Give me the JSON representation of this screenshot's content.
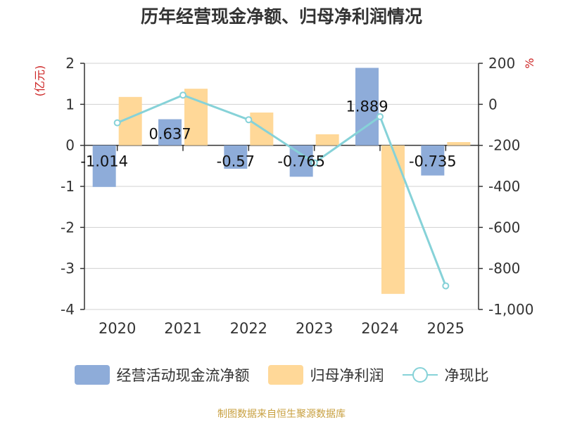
{
  "chart_data": {
    "type": "bar",
    "title": "历年经营现金净额、归母净利润情况",
    "categories": [
      "2020",
      "2021",
      "2022",
      "2023",
      "2024",
      "2025"
    ],
    "series": [
      {
        "name": "经营活动现金流净额",
        "kind": "bar",
        "axis": "left",
        "color": "#8eacd9",
        "values": [
          -1.014,
          0.637,
          -0.57,
          -0.765,
          1.889,
          -0.735
        ]
      },
      {
        "name": "归母净利润",
        "kind": "bar",
        "axis": "left",
        "color": "#ffd898",
        "values": [
          1.18,
          1.38,
          0.8,
          0.27,
          -3.62,
          0.08
        ]
      },
      {
        "name": "净现比",
        "kind": "line",
        "axis": "right",
        "color": "#86d2d8",
        "values": [
          -90,
          45,
          -75,
          -285,
          -60,
          -885
        ]
      }
    ],
    "data_labels": [
      "-1.014",
      "0.637",
      "-0.57",
      "-0.765",
      "1.889",
      "-0.735"
    ],
    "ylabel_left": "(亿元)",
    "ylabel_right": "%",
    "ylim_left": [
      -4,
      2
    ],
    "yticks_left": [
      "2",
      "1",
      "0",
      "-1",
      "-2",
      "-3",
      "-4"
    ],
    "ylim_right": [
      -1000,
      200
    ],
    "yticks_right": [
      "200",
      "0",
      "-200",
      "-400",
      "-600",
      "-800",
      "-1,000"
    ],
    "grid": true,
    "legend_position": "bottom"
  },
  "source": "制图数据来自恒生聚源数据库"
}
